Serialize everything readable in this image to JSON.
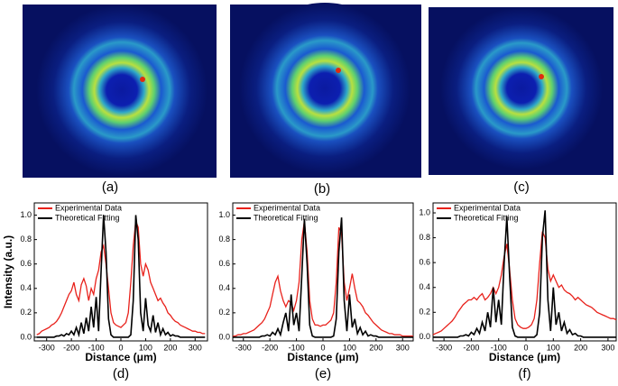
{
  "image_captions": [
    "(a)",
    "(b)",
    "(c)"
  ],
  "chart_data": [
    {
      "type": "line",
      "caption": "(d)",
      "x_label": "Distance (μm)",
      "y_label": "Intensity (a.u.)",
      "xlim": [
        -350,
        350
      ],
      "xticks": [
        -300,
        -200,
        -100,
        0,
        100,
        200,
        300
      ],
      "ylim": [
        -0.03,
        1.1
      ],
      "yticks": [
        {
          "value": 0,
          "label": "0.0"
        },
        {
          "value": 0.2,
          "label": "0.2"
        },
        {
          "value": 0.4,
          "label": "0.4"
        },
        {
          "value": 0.6,
          "label": "0.6"
        },
        {
          "value": 0.8,
          "label": "0.8"
        },
        {
          "value": 1,
          "label": "1.0"
        }
      ],
      "x": [
        -340,
        -330,
        -320,
        -310,
        -300,
        -290,
        -280,
        -270,
        -260,
        -250,
        -240,
        -230,
        -220,
        -210,
        -200,
        -190,
        -180,
        -170,
        -160,
        -150,
        -140,
        -130,
        -120,
        -110,
        -100,
        -90,
        -80,
        -70,
        -60,
        -50,
        -40,
        -30,
        -20,
        -10,
        0,
        10,
        20,
        30,
        40,
        50,
        60,
        70,
        80,
        90,
        100,
        110,
        120,
        130,
        140,
        150,
        160,
        170,
        180,
        190,
        200,
        210,
        220,
        230,
        240,
        250,
        260,
        270,
        280,
        290,
        300,
        310,
        320,
        330,
        340
      ],
      "series": [
        {
          "name": "Experimental Data",
          "color": "#e8211b",
          "values": [
            0.02,
            0.03,
            0.05,
            0.06,
            0.07,
            0.08,
            0.1,
            0.11,
            0.13,
            0.16,
            0.2,
            0.25,
            0.3,
            0.35,
            0.38,
            0.45,
            0.35,
            0.3,
            0.43,
            0.48,
            0.42,
            0.3,
            0.4,
            0.35,
            0.48,
            0.55,
            0.7,
            0.75,
            0.6,
            0.4,
            0.2,
            0.12,
            0.1,
            0.09,
            0.08,
            0.1,
            0.12,
            0.2,
            0.45,
            0.75,
            0.95,
            0.9,
            0.6,
            0.5,
            0.6,
            0.55,
            0.45,
            0.4,
            0.35,
            0.3,
            0.32,
            0.28,
            0.25,
            0.2,
            0.18,
            0.15,
            0.13,
            0.12,
            0.1,
            0.09,
            0.08,
            0.07,
            0.06,
            0.05,
            0.05,
            0.04,
            0.04,
            0.03,
            0.03
          ]
        },
        {
          "name": "Theoretical Fitting",
          "color": "#000000",
          "values": [
            0,
            0,
            0,
            0,
            0,
            0,
            0,
            0,
            0.01,
            0.01,
            0.02,
            0.01,
            0.03,
            0.02,
            0.05,
            0.02,
            0.08,
            0.02,
            0.12,
            0.03,
            0.16,
            0.05,
            0.25,
            0.08,
            0.33,
            0.05,
            0.55,
            1.0,
            0.7,
            0.15,
            0.02,
            0,
            0,
            0,
            0,
            0,
            0,
            0,
            0.02,
            0.3,
            1.0,
            0.8,
            0.2,
            0.05,
            0.32,
            0.1,
            0.05,
            0.18,
            0.04,
            0.12,
            0.02,
            0.07,
            0.02,
            0.04,
            0.01,
            0.02,
            0.01,
            0.01,
            0,
            0,
            0,
            0,
            0,
            0,
            0,
            0,
            0,
            0,
            0
          ]
        }
      ]
    },
    {
      "type": "line",
      "caption": "(e)",
      "x_label": "Distance (μm)",
      "xlim": [
        -340,
        340
      ],
      "xticks": [
        -300,
        -200,
        -100,
        0,
        100,
        200,
        300
      ],
      "ylim": [
        -0.03,
        1.1
      ],
      "yticks": [
        {
          "value": 0,
          "label": "0.0"
        },
        {
          "value": 0.2,
          "label": "0.2"
        },
        {
          "value": 0.4,
          "label": "0.4"
        },
        {
          "value": 0.6,
          "label": "0.6"
        },
        {
          "value": 0.8,
          "label": "0.8"
        },
        {
          "value": 1,
          "label": "1.0"
        }
      ],
      "x": [
        -340,
        -330,
        -320,
        -310,
        -300,
        -290,
        -280,
        -270,
        -260,
        -250,
        -240,
        -230,
        -220,
        -210,
        -200,
        -190,
        -180,
        -170,
        -160,
        -150,
        -140,
        -130,
        -120,
        -110,
        -100,
        -90,
        -80,
        -70,
        -60,
        -50,
        -40,
        -30,
        -20,
        -10,
        0,
        10,
        20,
        30,
        40,
        50,
        60,
        70,
        80,
        90,
        100,
        110,
        120,
        130,
        140,
        150,
        160,
        170,
        180,
        190,
        200,
        210,
        220,
        230,
        240,
        250,
        260,
        270,
        280,
        290,
        300,
        310,
        320,
        330,
        340
      ],
      "series": [
        {
          "name": "Experimental Data",
          "color": "#e8211b",
          "values": [
            0.01,
            0.01,
            0.02,
            0.02,
            0.03,
            0.03,
            0.04,
            0.05,
            0.06,
            0.08,
            0.1,
            0.12,
            0.15,
            0.2,
            0.25,
            0.35,
            0.45,
            0.5,
            0.38,
            0.3,
            0.25,
            0.3,
            0.28,
            0.22,
            0.3,
            0.45,
            0.8,
            0.95,
            0.7,
            0.3,
            0.15,
            0.1,
            0.1,
            0.09,
            0.1,
            0.1,
            0.12,
            0.14,
            0.2,
            0.45,
            0.9,
            0.85,
            0.45,
            0.3,
            0.4,
            0.52,
            0.4,
            0.3,
            0.28,
            0.25,
            0.2,
            0.18,
            0.15,
            0.12,
            0.1,
            0.08,
            0.06,
            0.05,
            0.04,
            0.03,
            0.03,
            0.02,
            0.02,
            0.02,
            0.01,
            0.01,
            0.01,
            0.01,
            0.01
          ]
        },
        {
          "name": "Theoretical Fitting",
          "color": "#000000",
          "values": [
            0,
            0,
            0,
            0,
            0,
            0,
            0,
            0,
            0,
            0,
            0,
            0.01,
            0.01,
            0.02,
            0.01,
            0.04,
            0.02,
            0.07,
            0.02,
            0.12,
            0.2,
            0.05,
            0.35,
            0.1,
            0.2,
            0.05,
            0.5,
            0.97,
            0.6,
            0.1,
            0.01,
            0,
            0,
            0,
            0,
            0,
            0,
            0,
            0.01,
            0.15,
            0.7,
            0.98,
            0.3,
            0.05,
            0.35,
            0.08,
            0.15,
            0.03,
            0.08,
            0.02,
            0.05,
            0.01,
            0.02,
            0.01,
            0.01,
            0,
            0,
            0,
            0,
            0,
            0,
            0,
            0,
            0,
            0,
            0,
            0,
            0,
            0
          ]
        }
      ]
    },
    {
      "type": "line",
      "caption": "(f)",
      "x_label": "Distance (μm)",
      "xlim": [
        -340,
        330
      ],
      "xticks": [
        -300,
        -200,
        -100,
        0,
        100,
        200,
        300
      ],
      "ylim": [
        -0.03,
        1.08
      ],
      "yticks": [
        {
          "value": 0,
          "label": "0.0"
        },
        {
          "value": 0.2,
          "label": "0.2"
        },
        {
          "value": 0.4,
          "label": "0.4"
        },
        {
          "value": 0.6,
          "label": "0.6"
        },
        {
          "value": 0.8,
          "label": "0.8"
        },
        {
          "value": 1,
          "label": "1.0"
        }
      ],
      "x": [
        -340,
        -330,
        -320,
        -310,
        -300,
        -290,
        -280,
        -270,
        -260,
        -250,
        -240,
        -230,
        -220,
        -210,
        -200,
        -190,
        -180,
        -170,
        -160,
        -150,
        -140,
        -130,
        -120,
        -110,
        -100,
        -90,
        -80,
        -70,
        -60,
        -50,
        -40,
        -30,
        -20,
        -10,
        0,
        10,
        20,
        30,
        40,
        50,
        60,
        70,
        80,
        90,
        100,
        110,
        120,
        130,
        140,
        150,
        160,
        170,
        180,
        190,
        200,
        210,
        220,
        230,
        240,
        250,
        260,
        270,
        280,
        290,
        300,
        310,
        320,
        330
      ],
      "series": [
        {
          "name": "Experimental Data",
          "color": "#e8211b",
          "values": [
            0.02,
            0.03,
            0.04,
            0.05,
            0.07,
            0.09,
            0.11,
            0.13,
            0.16,
            0.2,
            0.23,
            0.26,
            0.28,
            0.3,
            0.3,
            0.32,
            0.3,
            0.33,
            0.35,
            0.3,
            0.32,
            0.35,
            0.4,
            0.35,
            0.4,
            0.5,
            0.65,
            0.75,
            0.55,
            0.3,
            0.15,
            0.1,
            0.08,
            0.07,
            0.07,
            0.08,
            0.1,
            0.15,
            0.3,
            0.6,
            0.85,
            0.8,
            0.55,
            0.45,
            0.5,
            0.45,
            0.4,
            0.42,
            0.38,
            0.36,
            0.35,
            0.33,
            0.3,
            0.32,
            0.3,
            0.28,
            0.26,
            0.25,
            0.24,
            0.22,
            0.2,
            0.19,
            0.18,
            0.17,
            0.16,
            0.15,
            0.15,
            0.14
          ]
        },
        {
          "name": "Theoretical Fitting",
          "color": "#000000",
          "values": [
            0,
            0,
            0,
            0,
            0,
            0,
            0,
            0,
            0,
            0,
            0.01,
            0.01,
            0.02,
            0.01,
            0.04,
            0.02,
            0.07,
            0.03,
            0.12,
            0.05,
            0.2,
            0.08,
            0.4,
            0.12,
            0.3,
            0.1,
            0.6,
            0.97,
            0.5,
            0.08,
            0.01,
            0,
            0,
            0,
            0,
            0,
            0,
            0,
            0.02,
            0.2,
            0.8,
            1.02,
            0.3,
            0.05,
            0.4,
            0.1,
            0.2,
            0.05,
            0.12,
            0.03,
            0.06,
            0.02,
            0.03,
            0.01,
            0.01,
            0,
            0,
            0,
            0,
            0,
            0,
            0,
            0,
            0,
            0,
            0,
            0,
            0
          ]
        }
      ]
    }
  ]
}
